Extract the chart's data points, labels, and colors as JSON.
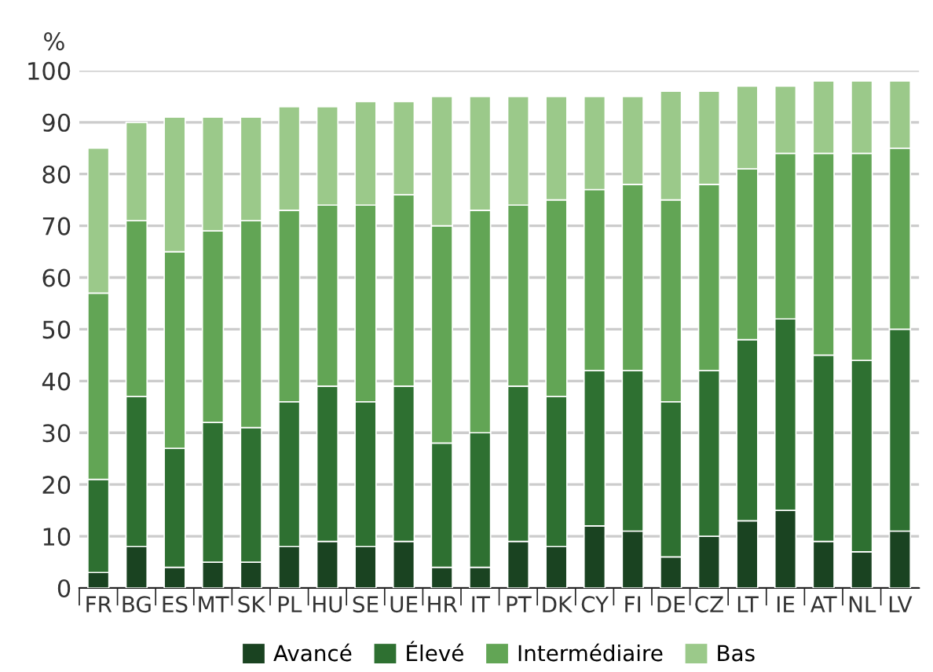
{
  "chart_data": {
    "type": "bar",
    "stacked": true,
    "ylabel": "%",
    "categories": [
      "FR",
      "BG",
      "ES",
      "MT",
      "SK",
      "PL",
      "HU",
      "SE",
      "UE",
      "HR",
      "IT",
      "PT",
      "DK",
      "CY",
      "FI",
      "DE",
      "CZ",
      "LT",
      "IE",
      "AT",
      "NL",
      "LV"
    ],
    "series": [
      {
        "name": "Avancé",
        "color": "#1a4321",
        "values": [
          3,
          8,
          4,
          5,
          5,
          8,
          9,
          8,
          9,
          4,
          4,
          9,
          8,
          12,
          11,
          6,
          10,
          13,
          15,
          9,
          7,
          11
        ]
      },
      {
        "name": "Élevé",
        "color": "#2e7031",
        "values": [
          18,
          29,
          23,
          27,
          26,
          28,
          30,
          28,
          30,
          24,
          26,
          30,
          29,
          30,
          31,
          30,
          32,
          35,
          37,
          36,
          37,
          39
        ]
      },
      {
        "name": "Intermédiaire",
        "color": "#62a555",
        "values": [
          36,
          34,
          38,
          37,
          40,
          37,
          35,
          38,
          37,
          42,
          43,
          35,
          38,
          35,
          36,
          39,
          36,
          33,
          32,
          39,
          40,
          35
        ]
      },
      {
        "name": "Bas",
        "color": "#9bc98a",
        "values": [
          28,
          19,
          26,
          22,
          20,
          20,
          19,
          20,
          18,
          25,
          22,
          21,
          20,
          18,
          17,
          21,
          18,
          16,
          13,
          14,
          14,
          13
        ]
      }
    ],
    "ylim": [
      0,
      100
    ],
    "yticks": [
      0,
      10,
      20,
      30,
      40,
      50,
      60,
      70,
      80,
      90,
      100
    ],
    "grid": "y",
    "legend": "bottom"
  }
}
